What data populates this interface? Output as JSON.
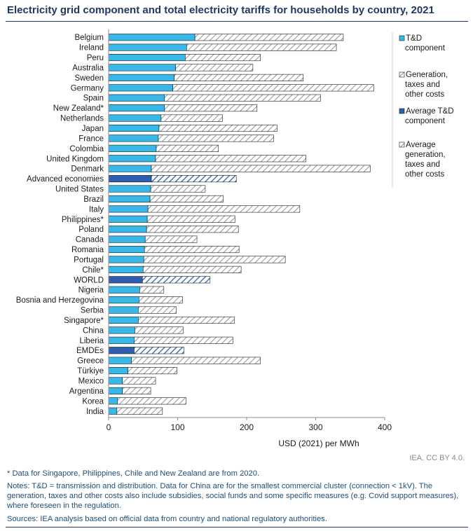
{
  "title": "Electricity grid component and total electricity tariffs for households by country, 2021",
  "credit": "IEA. CC BY 4.0.",
  "footnote": "* Data for Singapore, Philippines, Chile and New Zealand are from 2020.",
  "notes": "Notes: T&D = transmission and distribution. Data for China are for the smallest commercial cluster (connection < 1kV). The generation, taxes and other costs also include subsidies, social funds and some specific measures (e.g. Covid support measures), where foreseen in the regulation.",
  "sources": "Sources: IEA analysis based on official data from country and national regulatory authorities.",
  "colors": {
    "td": "#38b7e8",
    "avg_td": "#2f5eb0",
    "axis": "#8c8c8c",
    "title": "#1f3864",
    "notes": "#1f4e79"
  },
  "chart_data": {
    "type": "bar",
    "orientation": "horizontal",
    "stacked": true,
    "xlabel": "USD (2021) per MWh",
    "xlim": [
      0,
      400
    ],
    "xticks": [
      0,
      100,
      200,
      300,
      400
    ],
    "grid": false,
    "legend_position": "right",
    "legend": [
      "T&D component",
      "Generation, taxes and other costs",
      "Average T&D component",
      "Average generation, taxes and other costs"
    ],
    "categories": [
      "Belgium",
      "Ireland",
      "Peru",
      "Australia",
      "Sweden",
      "Germany",
      "Spain",
      "New Zealand*",
      "Netherlands",
      "Japan",
      "France",
      "Colombia",
      "United Kingdom",
      "Denmark",
      "Advanced economies",
      "United States",
      "Brazil",
      "Italy",
      "Philippines*",
      "Poland",
      "Canada",
      "Romania",
      "Portugal",
      "Chile*",
      "WORLD",
      "Nigeria",
      "Bosnia and Herzegovina",
      "Serbia",
      "Singapore*",
      "China",
      "Liberia",
      "EMDEs",
      "Greece",
      "Türkiye",
      "Mexico",
      "Argentina",
      "Korea",
      "India"
    ],
    "average_rows": [
      "Advanced economies",
      "WORLD",
      "EMDEs"
    ],
    "series": [
      {
        "name": "T&D component",
        "values": [
          125,
          113,
          111,
          97,
          95,
          93,
          81,
          81,
          76,
          73,
          72,
          69,
          68,
          62,
          62,
          61,
          60,
          57,
          56,
          55,
          53,
          52,
          51,
          50,
          49,
          45,
          44,
          43,
          43,
          38,
          37,
          37,
          33,
          28,
          20,
          20,
          13,
          12
        ]
      },
      {
        "name": "Generation, taxes and other costs",
        "values": [
          215,
          217,
          109,
          112,
          187,
          291,
          226,
          134,
          89,
          171,
          167,
          90,
          218,
          317,
          123,
          79,
          106,
          220,
          127,
          133,
          75,
          137,
          205,
          142,
          98,
          35,
          63,
          55,
          139,
          70,
          143,
          72,
          187,
          71,
          48,
          41,
          99,
          66
        ]
      }
    ]
  }
}
